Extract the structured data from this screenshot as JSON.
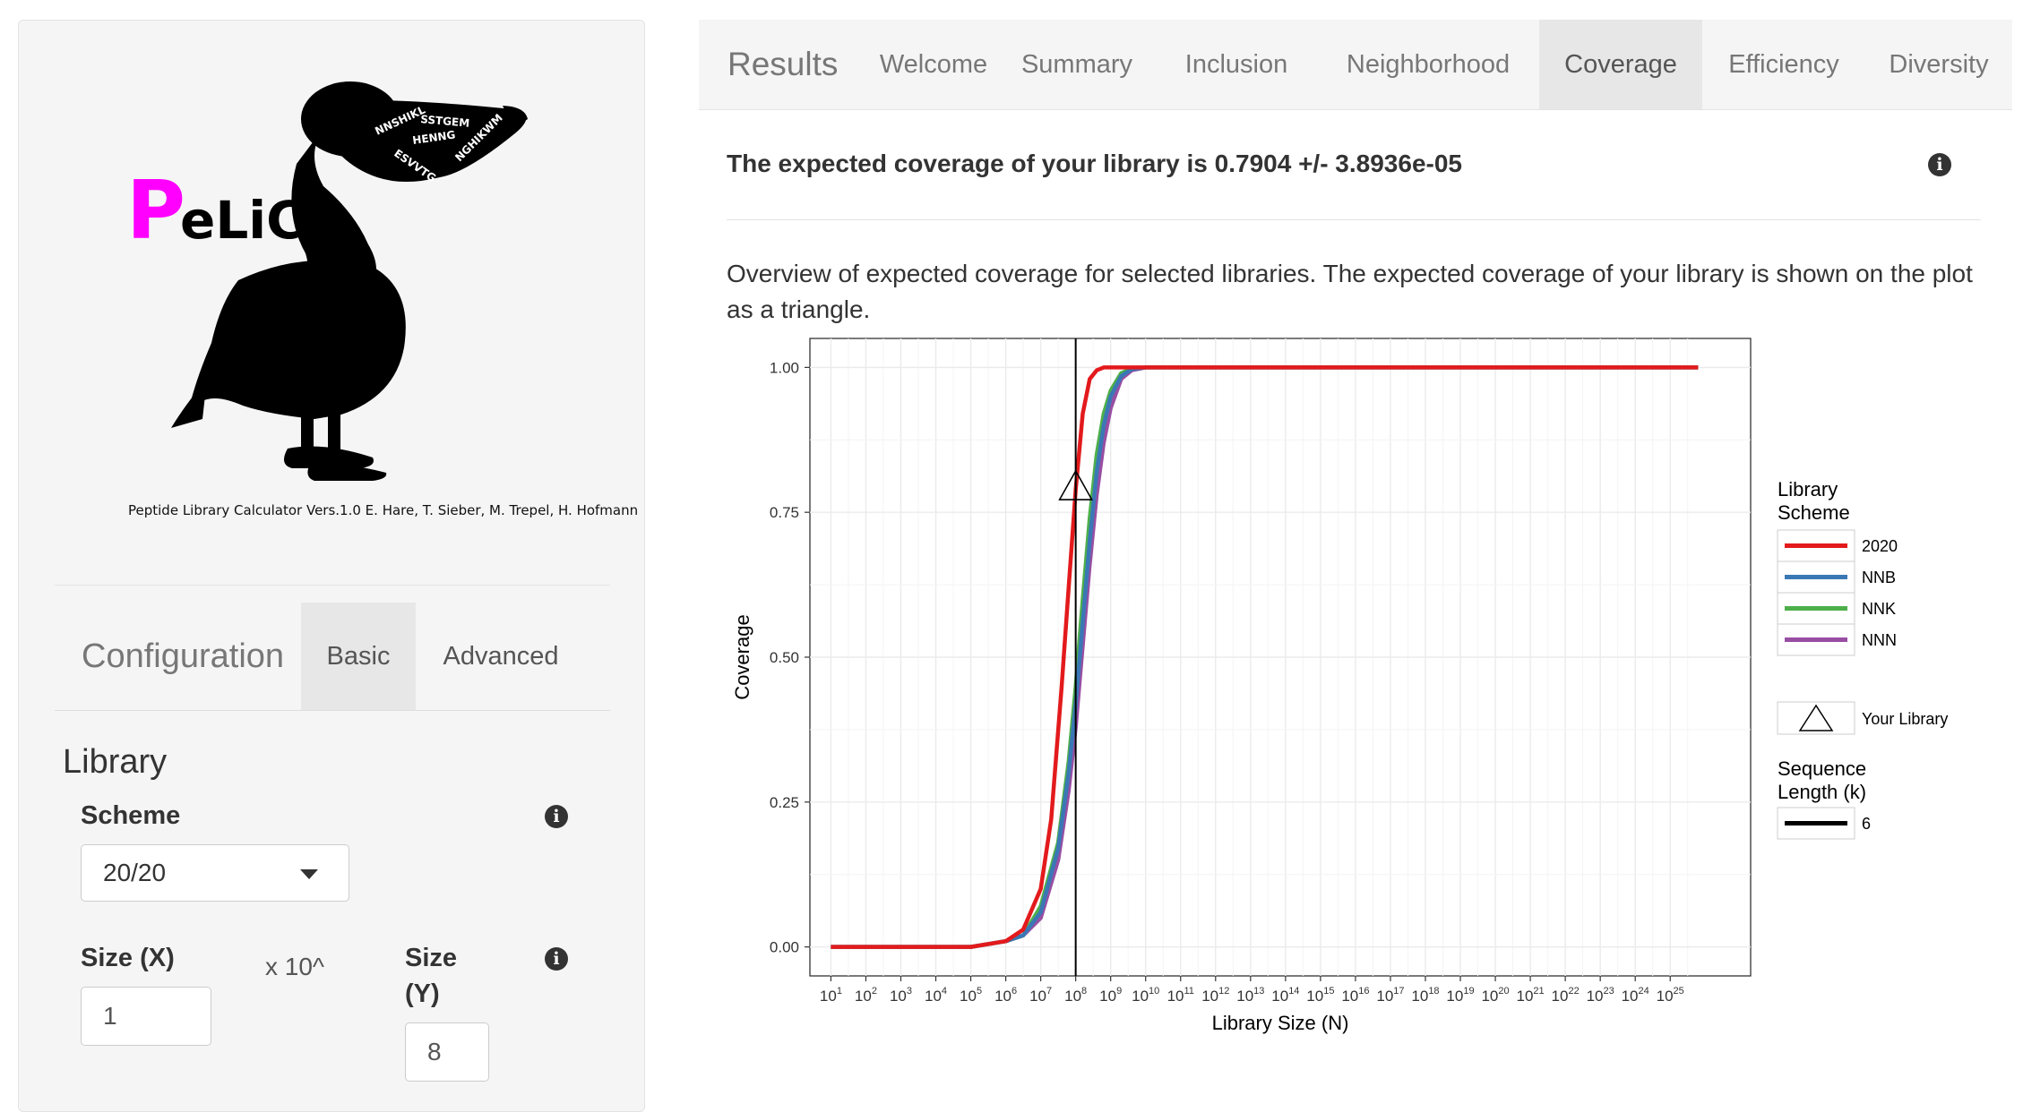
{
  "sidebar": {
    "logo": {
      "title_first_letter": "P",
      "title_rest": "eLiCa",
      "title_first_color": "#ff00ff",
      "silhouette_color": "#000000",
      "pouch_text": [
        "NNSHIKL",
        "SSTGEM",
        "HENNG",
        "NGHIKWM",
        "ESVVTG"
      ]
    },
    "credits": "Peptide Library Calculator Vers.1.0 E. Hare, T. Sieber, M. Trepel, H. Hofmann",
    "config": {
      "title": "Configuration",
      "tabs": [
        {
          "label": "Basic",
          "active": true
        },
        {
          "label": "Advanced",
          "active": false
        }
      ]
    },
    "library": {
      "title": "Library",
      "scheme_label": "Scheme",
      "scheme_value": "20/20",
      "size_x_label": "Size (X)",
      "size_x_value": "1",
      "multiplier": "x 10^",
      "size_y_label_line1": "Size",
      "size_y_label_line2": "(Y)",
      "size_y_value": "8",
      "info_icon": "info-circle-icon"
    }
  },
  "results": {
    "brand": "Results",
    "tabs": [
      {
        "label": "Welcome",
        "active": false
      },
      {
        "label": "Summary",
        "active": false
      },
      {
        "label": "Inclusion",
        "active": false
      },
      {
        "label": "Neighborhood",
        "active": false
      },
      {
        "label": "Coverage",
        "active": true
      },
      {
        "label": "Efficiency",
        "active": false
      },
      {
        "label": "Diversity",
        "active": false
      }
    ],
    "headline": "The expected coverage of your library is 0.7904 +/- 3.8936e-05",
    "description": "Overview of expected coverage for selected libraries. The expected coverage of your library is shown on the plot as a triangle."
  },
  "chart_data": {
    "type": "line",
    "xlabel": "Library Size (N)",
    "ylabel": "Coverage",
    "x_scale": "log10",
    "x_tick_exponents": [
      1,
      2,
      3,
      4,
      5,
      6,
      7,
      8,
      9,
      10,
      11,
      12,
      13,
      14,
      15,
      16,
      17,
      18,
      19,
      20,
      21,
      22,
      23,
      24,
      25
    ],
    "x_tick_base": "10",
    "xlim_log10": [
      1,
      25.8
    ],
    "ylim": [
      0,
      1
    ],
    "y_ticks": [
      "0.00",
      "0.25",
      "0.50",
      "0.75",
      "1.00"
    ],
    "grid": true,
    "vline_log10": 8,
    "series": [
      {
        "name": "2020",
        "color": "#e31a1c",
        "x_log10": [
          1,
          5,
          6,
          6.5,
          7,
          7.3,
          7.6,
          7.8,
          8,
          8.2,
          8.4,
          8.6,
          8.8,
          9,
          10,
          25.8
        ],
        "y": [
          0,
          0,
          0.01,
          0.03,
          0.1,
          0.22,
          0.45,
          0.62,
          0.79,
          0.92,
          0.98,
          0.995,
          1,
          1,
          1,
          1
        ]
      },
      {
        "name": "NNB",
        "color": "#3a78b5",
        "x_log10": [
          1,
          5,
          6,
          6.5,
          7,
          7.5,
          7.8,
          8,
          8.2,
          8.4,
          8.6,
          8.8,
          9,
          9.3,
          9.6,
          10,
          25.8
        ],
        "y": [
          0,
          0,
          0.01,
          0.02,
          0.06,
          0.17,
          0.3,
          0.42,
          0.56,
          0.7,
          0.82,
          0.9,
          0.95,
          0.985,
          0.997,
          1,
          1
        ]
      },
      {
        "name": "NNK",
        "color": "#4daf4a",
        "x_log10": [
          1,
          5,
          6,
          6.5,
          7,
          7.5,
          7.8,
          8,
          8.2,
          8.4,
          8.6,
          8.8,
          9,
          9.3,
          9.6,
          10,
          25.8
        ],
        "y": [
          0,
          0,
          0.01,
          0.02,
          0.07,
          0.18,
          0.32,
          0.45,
          0.6,
          0.74,
          0.85,
          0.92,
          0.96,
          0.99,
          0.998,
          1,
          1
        ]
      },
      {
        "name": "NNN",
        "color": "#984ea3",
        "x_log10": [
          1,
          5,
          6,
          6.5,
          7,
          7.5,
          7.8,
          8,
          8.2,
          8.4,
          8.6,
          8.8,
          9,
          9.3,
          9.6,
          10,
          25.8
        ],
        "y": [
          0,
          0,
          0.01,
          0.02,
          0.05,
          0.15,
          0.27,
          0.38,
          0.52,
          0.66,
          0.78,
          0.87,
          0.93,
          0.98,
          0.995,
          1,
          1
        ]
      }
    ],
    "your_library": {
      "x_log10": 8,
      "y": 0.7904,
      "label": "Your Library"
    },
    "legend": {
      "title_line1": "Library",
      "title_line2": "Scheme",
      "seq_title_line1": "Sequence",
      "seq_title_line2": "Length (k)",
      "seq_value": "6",
      "position": "right"
    }
  }
}
